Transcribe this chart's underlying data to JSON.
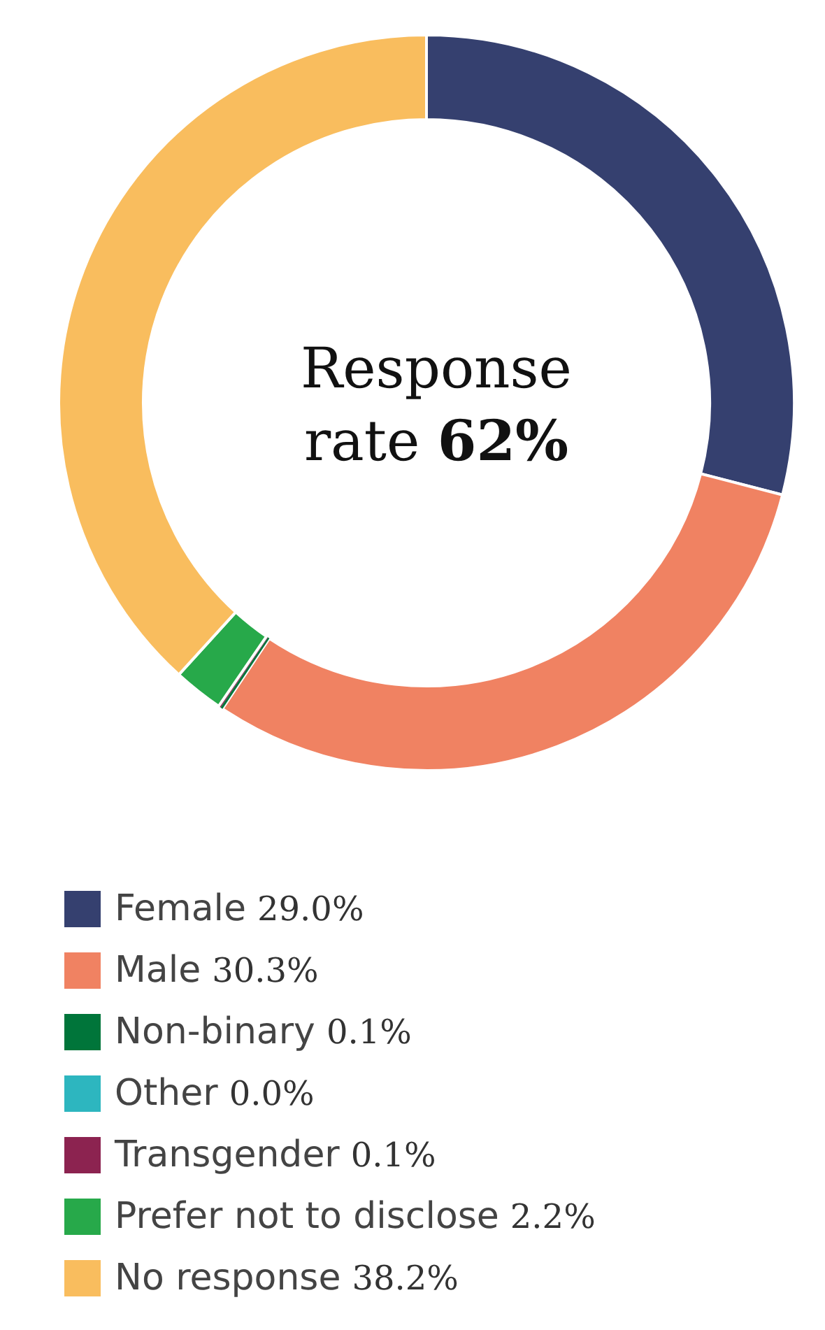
{
  "chart_data": {
    "type": "donut",
    "categories": [
      "Female",
      "Male",
      "Non-binary",
      "Other",
      "Transgender",
      "Prefer not to disclose",
      "No response"
    ],
    "values": [
      29.0,
      30.3,
      0.1,
      0.0,
      0.1,
      2.2,
      38.2
    ],
    "value_labels": [
      "29.0%",
      "30.3%",
      "0.1%",
      "0.0%",
      "0.1%",
      "2.2%",
      "38.2%"
    ],
    "colors": [
      "#35406f",
      "#f08262",
      "#00753a",
      "#2db6bf",
      "#8c2350",
      "#27a94a",
      "#f9bd5e"
    ],
    "annotations": [
      "Response rate",
      "62%"
    ],
    "legend": "bottom"
  }
}
